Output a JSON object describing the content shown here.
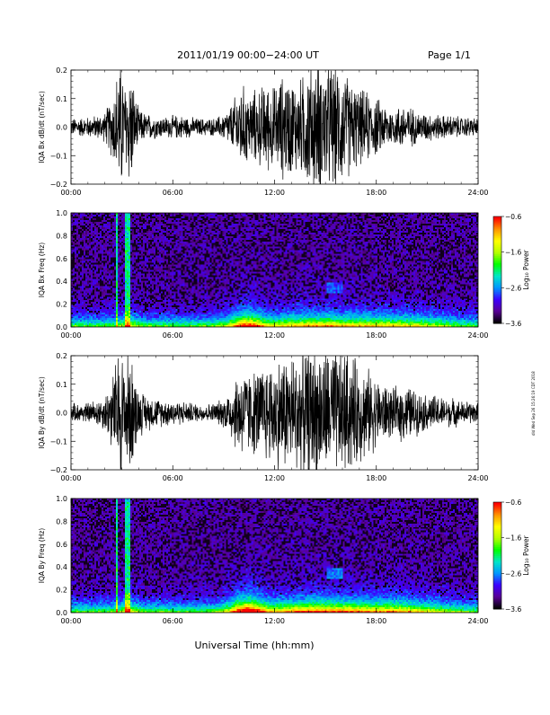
{
  "header": {
    "title": "2011/01/19  00:00−24:00 UT",
    "page": "Page 1/1"
  },
  "side_stamp": "dld Wed Sep 26 15:26:19 CDT 2018",
  "xlabel": "Universal Time (hh:mm)",
  "chart_data": [
    {
      "type": "line",
      "title": "",
      "ylabel": "IQA Bx dB/dt (nT/sec)",
      "xlim": [
        "00:00",
        "24:00"
      ],
      "x_ticks": [
        "00:00",
        "06:00",
        "12:00",
        "18:00",
        "24:00"
      ],
      "ylim": [
        -0.2,
        0.2
      ],
      "y_ticks": [
        "−0.2",
        "−0.1",
        "0.0",
        "0.1",
        "0.2"
      ],
      "envelope_hours": [
        0,
        1,
        1.5,
        2,
        2.5,
        2.8,
        3.0,
        3.2,
        3.5,
        3.8,
        4.0,
        4.5,
        5,
        5.5,
        6,
        6.5,
        7,
        7.5,
        8,
        8.5,
        9,
        9.5,
        10,
        10.5,
        11,
        11.5,
        12,
        12.5,
        13,
        13.5,
        14,
        14.5,
        15,
        15.5,
        16,
        16.5,
        17,
        17.5,
        18,
        18.5,
        19,
        19.5,
        20,
        20.5,
        21,
        21.5,
        22,
        22.5,
        23,
        23.5,
        24
      ],
      "envelope_amp": [
        0.03,
        0.035,
        0.04,
        0.05,
        0.12,
        0.22,
        0.22,
        0.15,
        0.22,
        0.1,
        0.06,
        0.045,
        0.04,
        0.035,
        0.04,
        0.04,
        0.035,
        0.03,
        0.03,
        0.03,
        0.045,
        0.08,
        0.15,
        0.12,
        0.13,
        0.15,
        0.14,
        0.18,
        0.17,
        0.16,
        0.22,
        0.22,
        0.22,
        0.22,
        0.2,
        0.16,
        0.13,
        0.12,
        0.1,
        0.08,
        0.06,
        0.08,
        0.07,
        0.05,
        0.05,
        0.045,
        0.04,
        0.04,
        0.035,
        0.035,
        0.03
      ]
    },
    {
      "type": "heatmap",
      "title": "",
      "ylabel": "IQA Bx Freq (Hz)",
      "xlim": [
        "00:00",
        "24:00"
      ],
      "x_ticks": [
        "00:00",
        "06:00",
        "12:00",
        "18:00",
        "24:00"
      ],
      "ylim": [
        0.0,
        1.0
      ],
      "y_ticks": [
        "0.0",
        "0.2",
        "0.4",
        "0.6",
        "0.8",
        "1.0"
      ],
      "colorbar": {
        "label": "Log₁₀ Power",
        "range": [
          -3.6,
          -0.6
        ],
        "ticks": [
          "−0.6",
          "−1.6",
          "−2.6",
          "−3.6"
        ],
        "colors": [
          "#000000",
          "#5a0096",
          "#3c00ff",
          "#0096ff",
          "#00e6c8",
          "#00ff00",
          "#b4ff00",
          "#ffff00",
          "#ff9600",
          "#ff0000"
        ]
      }
    },
    {
      "type": "line",
      "title": "",
      "ylabel": "IQA By dB/dt (nT/sec)",
      "xlim": [
        "00:00",
        "24:00"
      ],
      "x_ticks": [
        "00:00",
        "06:00",
        "12:00",
        "18:00",
        "24:00"
      ],
      "ylim": [
        -0.2,
        0.2
      ],
      "y_ticks": [
        "−0.2",
        "−0.1",
        "0.0",
        "0.1",
        "0.2"
      ],
      "envelope_hours": [
        0,
        1,
        1.5,
        2,
        2.5,
        2.8,
        3.0,
        3.2,
        3.5,
        3.8,
        4.0,
        4.5,
        5,
        5.5,
        6,
        6.5,
        7,
        7.5,
        8,
        8.5,
        9,
        9.5,
        10,
        10.5,
        11,
        11.5,
        12,
        12.5,
        13,
        13.5,
        14,
        14.5,
        15,
        15.5,
        16,
        16.5,
        17,
        17.5,
        18,
        18.5,
        19,
        19.5,
        20,
        20.5,
        21,
        21.5,
        22,
        22.5,
        23,
        23.5,
        24
      ],
      "envelope_amp": [
        0.03,
        0.035,
        0.045,
        0.06,
        0.14,
        0.22,
        0.22,
        0.18,
        0.22,
        0.12,
        0.08,
        0.06,
        0.05,
        0.045,
        0.045,
        0.04,
        0.035,
        0.03,
        0.03,
        0.035,
        0.05,
        0.1,
        0.16,
        0.14,
        0.15,
        0.17,
        0.18,
        0.2,
        0.2,
        0.22,
        0.22,
        0.22,
        0.22,
        0.22,
        0.22,
        0.2,
        0.17,
        0.15,
        0.12,
        0.1,
        0.08,
        0.1,
        0.09,
        0.07,
        0.06,
        0.06,
        0.05,
        0.05,
        0.04,
        0.04,
        0.035
      ]
    },
    {
      "type": "heatmap",
      "title": "",
      "ylabel": "IQA By Freq (Hz)",
      "xlim": [
        "00:00",
        "24:00"
      ],
      "x_ticks": [
        "00:00",
        "06:00",
        "12:00",
        "18:00",
        "24:00"
      ],
      "ylim": [
        0.0,
        1.0
      ],
      "y_ticks": [
        "0.0",
        "0.2",
        "0.4",
        "0.6",
        "0.8",
        "1.0"
      ],
      "colorbar": {
        "label": "Log₁₀ Power",
        "range": [
          -3.6,
          -0.6
        ],
        "ticks": [
          "−0.6",
          "−1.6",
          "−2.6",
          "−3.6"
        ],
        "colors": [
          "#000000",
          "#5a0096",
          "#3c00ff",
          "#0096ff",
          "#00e6c8",
          "#00ff00",
          "#b4ff00",
          "#ffff00",
          "#ff9600",
          "#ff0000"
        ]
      }
    }
  ]
}
